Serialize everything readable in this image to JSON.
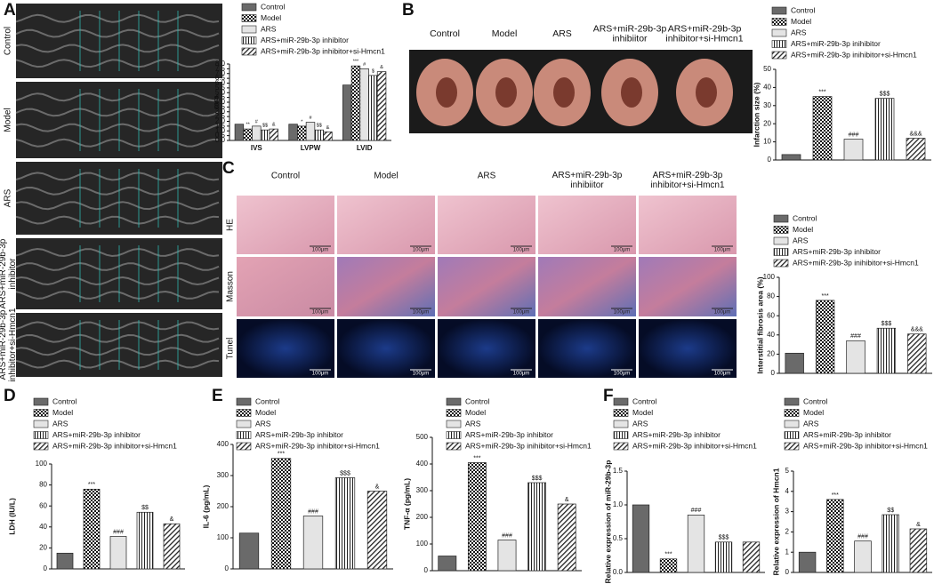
{
  "panels": {
    "A": {
      "letter": "A",
      "echo_labels": [
        [
          "Control"
        ],
        [
          "Model"
        ],
        [
          "ARS"
        ],
        [
          "ARS+miR-29b-3p",
          "inhibitor"
        ],
        [
          "ARS+miR-29b-3p",
          "inhibitor+si-Hmcn1"
        ]
      ]
    },
    "B": {
      "letter": "B",
      "photo_labels": [
        [
          "Control"
        ],
        [
          "Model"
        ],
        [
          "ARS"
        ],
        [
          "ARS+miR-29b-3p",
          "inhibiitor"
        ],
        [
          "ARS+miR-29b-3p",
          "inhibitor+si-Hmcn1"
        ]
      ]
    },
    "C": {
      "letter": "C",
      "column_labels": [
        [
          "Control"
        ],
        [
          "Model"
        ],
        [
          "ARS"
        ],
        [
          "ARS+miR-29b-3p",
          "inhibiitor"
        ],
        [
          "ARS+miR-29b-3p",
          "inhibitor+si-Hmcn1"
        ]
      ],
      "row_labels": [
        "HE",
        "Masson",
        "Tunel"
      ],
      "scale_bar": "100μm"
    },
    "D": {
      "letter": "D"
    },
    "E": {
      "letter": "E"
    },
    "F": {
      "letter": "F"
    }
  },
  "chart_data": [
    {
      "type": "bar",
      "ylabel": "mm",
      "ylim": [
        0,
        8
      ],
      "yticks": [
        {
          "value": 0,
          "label": "0.0"
        },
        0.5,
        {
          "value": 1,
          "label": "1.0"
        },
        1.5,
        {
          "value": 2,
          "label": "2.0"
        },
        2.5,
        {
          "value": 3,
          "label": "3.0"
        },
        3.5,
        {
          "value": 4,
          "label": "4.0"
        },
        4.5,
        {
          "value": 5,
          "label": "5.0"
        },
        5.5,
        {
          "value": 6,
          "label": "6.0"
        },
        6.5,
        {
          "value": 7,
          "label": "7.0"
        },
        7.5,
        {
          "value": 8,
          "label": "8.0"
        }
      ],
      "categories": [
        "IVS",
        "LVPW",
        "LVID"
      ],
      "series": [
        {
          "name": "Control",
          "pattern": "solid",
          "values": [
            1.7,
            1.7,
            5.8
          ]
        },
        {
          "name": "Model",
          "pattern": "checker",
          "values": [
            1.2,
            1.5,
            7.8
          ],
          "significance": [
            "**",
            "*",
            "***"
          ]
        },
        {
          "name": "ARS",
          "pattern": "light",
          "values": [
            1.5,
            1.9,
            7.5
          ],
          "significance": [
            "#",
            "#",
            "#"
          ]
        },
        {
          "name": "ARS+miR-29b-3p inhibitor",
          "pattern": "vstripe",
          "values": [
            1.1,
            1.1,
            6.8
          ],
          "significance": [
            "$$",
            "$$",
            "$"
          ]
        },
        {
          "name": "ARS+miR-29b-3p inhibitor+si-Hmcn1",
          "pattern": "diag",
          "values": [
            1.2,
            0.9,
            7.2
          ],
          "significance": [
            "&",
            "&",
            "&"
          ]
        }
      ]
    },
    {
      "type": "bar",
      "ylabel": "Infarction size (%)",
      "ylim": [
        0,
        50
      ],
      "yticks": [
        0,
        10,
        20,
        30,
        40,
        50
      ],
      "series": [
        {
          "name": "Control",
          "pattern": "solid",
          "values": [
            3
          ]
        },
        {
          "name": "Model",
          "pattern": "checker",
          "values": [
            35
          ],
          "significance": [
            "***"
          ]
        },
        {
          "name": "ARS",
          "pattern": "light",
          "values": [
            11.5
          ],
          "significance": [
            "###"
          ]
        },
        {
          "name": "ARS+miR-29b-3p inihibitor",
          "pattern": "vstripe",
          "values": [
            34
          ],
          "significance": [
            "$$$"
          ]
        },
        {
          "name": "ARS+miR-29b-3p inihibitor+si-Hmcn1",
          "pattern": "diag",
          "values": [
            12
          ],
          "significance": [
            "&&&"
          ]
        }
      ]
    },
    {
      "type": "bar",
      "ylabel": "Interstitial fibrosis area (%)",
      "ylim": [
        0,
        100
      ],
      "yticks": [
        0,
        20,
        40,
        60,
        80,
        100
      ],
      "series": [
        {
          "name": "Control",
          "pattern": "solid",
          "values": [
            21
          ]
        },
        {
          "name": "Model",
          "pattern": "checker",
          "values": [
            76
          ],
          "significance": [
            "***"
          ]
        },
        {
          "name": "ARS",
          "pattern": "light",
          "values": [
            34
          ],
          "significance": [
            "###"
          ]
        },
        {
          "name": "ARS+miR-29b-3p inhibitor",
          "pattern": "vstripe",
          "values": [
            47
          ],
          "significance": [
            "$$$"
          ]
        },
        {
          "name": "ARS+miR-29b-3p inihibitor+si-Hmcn1",
          "pattern": "diag",
          "values": [
            41
          ],
          "significance": [
            "&&&"
          ]
        }
      ]
    },
    {
      "type": "bar",
      "ylabel": "LDH (IU/L)",
      "ylim": [
        0,
        100
      ],
      "yticks": [
        0,
        20,
        40,
        60,
        80,
        100
      ],
      "series": [
        {
          "name": "Control",
          "pattern": "solid",
          "values": [
            15
          ]
        },
        {
          "name": "Model",
          "pattern": "checker",
          "values": [
            76
          ],
          "significance": [
            "***"
          ]
        },
        {
          "name": "ARS",
          "pattern": "light",
          "values": [
            31
          ],
          "significance": [
            "###"
          ]
        },
        {
          "name": "ARS+miR-29b-3p inhibitor",
          "pattern": "vstripe",
          "values": [
            54
          ],
          "significance": [
            "$$"
          ]
        },
        {
          "name": "ARS+miR-29b-3p inhibitor+si-Hmcn1",
          "pattern": "diag",
          "values": [
            43
          ],
          "significance": [
            "&"
          ]
        }
      ]
    },
    {
      "type": "bar",
      "ylabel": "IL-6 (pg/mL)",
      "ylim": [
        0,
        400
      ],
      "yticks": [
        0,
        100,
        200,
        300,
        400
      ],
      "series": [
        {
          "name": "Control",
          "pattern": "solid",
          "values": [
            115
          ]
        },
        {
          "name": "Model",
          "pattern": "checker",
          "values": [
            355
          ],
          "significance": [
            "***"
          ]
        },
        {
          "name": "ARS",
          "pattern": "light",
          "values": [
            170
          ],
          "significance": [
            "###"
          ]
        },
        {
          "name": "ARS+miR-29b-3p inhibitor",
          "pattern": "vstripe",
          "values": [
            293
          ],
          "significance": [
            "$$$"
          ]
        },
        {
          "name": "ARS+miR-29b-3p inhibitor+si-Hmcn1",
          "pattern": "diag",
          "values": [
            250
          ],
          "significance": [
            "&"
          ]
        }
      ]
    },
    {
      "type": "bar",
      "ylabel": "TNF-α (pg/mL)",
      "ylim": [
        0,
        500
      ],
      "yticks": [
        0,
        100,
        200,
        300,
        400,
        500
      ],
      "series": [
        {
          "name": "Control",
          "pattern": "solid",
          "values": [
            55
          ]
        },
        {
          "name": "Model",
          "pattern": "checker",
          "values": [
            405
          ],
          "significance": [
            "***"
          ]
        },
        {
          "name": "ARS",
          "pattern": "light",
          "values": [
            115
          ],
          "significance": [
            "###"
          ]
        },
        {
          "name": "ARS+miR-29b-3p inhibitor",
          "pattern": "vstripe",
          "values": [
            330
          ],
          "significance": [
            "$$$"
          ]
        },
        {
          "name": "ARS+miR-29b-3p inihibitor+si-Hmcn1",
          "pattern": "diag",
          "values": [
            250
          ],
          "significance": [
            "&"
          ]
        }
      ]
    },
    {
      "type": "bar",
      "ylabel": "Relative expression of miR-29b-3p",
      "ylim": [
        0,
        1.5
      ],
      "yticks": [
        {
          "value": 0,
          "label": "0.0"
        },
        0.5,
        {
          "value": 1,
          "label": "1.0"
        },
        1.5
      ],
      "series": [
        {
          "name": "Control",
          "pattern": "solid",
          "values": [
            1.0
          ]
        },
        {
          "name": "Model",
          "pattern": "checker",
          "values": [
            0.2
          ],
          "significance": [
            "***"
          ]
        },
        {
          "name": "ARS",
          "pattern": "light",
          "values": [
            0.85
          ],
          "significance": [
            "###"
          ]
        },
        {
          "name": "ARS+miR-29b-3p inhibitor",
          "pattern": "vstripe",
          "values": [
            0.45
          ],
          "significance": [
            "$$$"
          ]
        },
        {
          "name": "ARS+miR-29b-3p inhibitor+si-Hmcn1",
          "pattern": "diag",
          "values": [
            0.45
          ]
        }
      ]
    },
    {
      "type": "bar",
      "ylabel": "Relative expression of Hmcn1",
      "ylim": [
        0,
        5
      ],
      "yticks": [
        0,
        1,
        2,
        3,
        4,
        5
      ],
      "series": [
        {
          "name": "Control",
          "pattern": "solid",
          "values": [
            1.0
          ]
        },
        {
          "name": "Model",
          "pattern": "checker",
          "values": [
            3.6
          ],
          "significance": [
            "***"
          ]
        },
        {
          "name": "ARS",
          "pattern": "light",
          "values": [
            1.55
          ],
          "significance": [
            "###"
          ]
        },
        {
          "name": "ARS+miR-29b-3p inhibitor",
          "pattern": "vstripe",
          "values": [
            2.85
          ],
          "significance": [
            "$$"
          ]
        },
        {
          "name": "ARS+miR-29b-3p inhibitor+si-Hmcn1",
          "pattern": "diag",
          "values": [
            2.15
          ],
          "significance": [
            "&"
          ]
        }
      ]
    }
  ]
}
